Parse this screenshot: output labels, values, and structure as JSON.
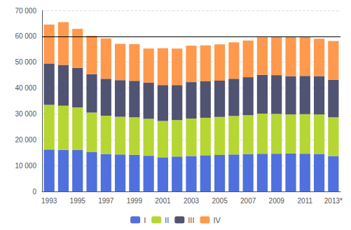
{
  "chart_data": {
    "type": "bar",
    "stacked": true,
    "categories": [
      "1993",
      null,
      "1995",
      null,
      "1997",
      null,
      "1999",
      null,
      "2001",
      null,
      "2003",
      null,
      "2005",
      null,
      "2007",
      null,
      "2009",
      null,
      "2011",
      null,
      "2013*"
    ],
    "series": [
      {
        "name": "I",
        "values": [
          16200,
          16100,
          16000,
          15200,
          14500,
          14300,
          14200,
          13800,
          13200,
          13500,
          13700,
          14000,
          14100,
          14300,
          14400,
          14600,
          14600,
          14700,
          14600,
          14500,
          13700
        ]
      },
      {
        "name": "II",
        "values": [
          17300,
          17100,
          16500,
          15300,
          14800,
          14600,
          14500,
          14300,
          14100,
          14100,
          14500,
          14500,
          14700,
          14900,
          15100,
          15500,
          15400,
          15100,
          15300,
          15300,
          15000
        ]
      },
      {
        "name": "III",
        "values": [
          16000,
          15800,
          15300,
          14900,
          14300,
          14200,
          14100,
          14000,
          13900,
          13600,
          14100,
          14100,
          14100,
          14400,
          14700,
          15000,
          15000,
          14800,
          14800,
          14800,
          14500
        ]
      },
      {
        "name": "IV",
        "values": [
          15100,
          16500,
          15100,
          14800,
          15600,
          14000,
          14200,
          13200,
          14200,
          14100,
          14100,
          13900,
          14000,
          14100,
          14200,
          14500,
          14800,
          15200,
          15200,
          14500,
          15000
        ]
      }
    ],
    "ylim": [
      0,
      70000
    ],
    "yticks": [
      0,
      {
        "value": 10000,
        "label": "10 000"
      },
      {
        "value": 20000,
        "label": "20 000"
      },
      {
        "value": 30000,
        "label": "30 000"
      },
      {
        "value": 40000,
        "label": "40 000"
      },
      {
        "value": 50000,
        "label": "50 000"
      },
      {
        "value": 60000,
        "label": "60 000"
      },
      {
        "value": 70000,
        "label": "70 000"
      }
    ],
    "hline": 60000,
    "grid": true,
    "legend": "bottom"
  }
}
